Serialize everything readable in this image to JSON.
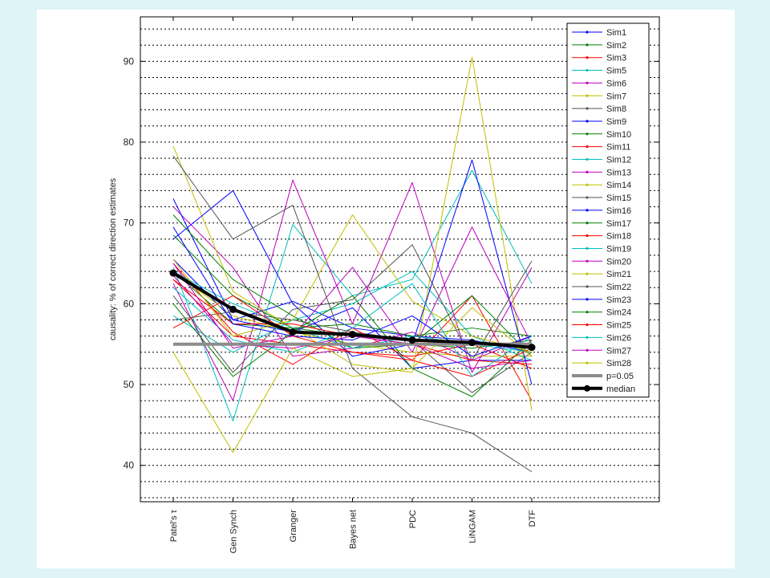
{
  "chart_data": {
    "type": "line",
    "ylabel": "causality:  % of correct direction estimates",
    "categories": [
      "Patel's τ",
      "Gen Synch",
      "Granger",
      "Bayes net",
      "PDC",
      "LiNGAM",
      "DTF"
    ],
    "ylim": [
      35.5,
      95.5
    ],
    "yticks": [
      40,
      50,
      60,
      70,
      80,
      90
    ],
    "grid": "horizontal dotted",
    "legend_position": "top-right",
    "series": [
      {
        "name": "Sim1",
        "color": "#0000ff",
        "values": [
          65.5,
          58.0,
          60.3,
          57.0,
          56.0,
          55.5,
          54.0
        ]
      },
      {
        "name": "Sim2",
        "color": "#008000",
        "values": [
          64.0,
          57.5,
          57.0,
          56.0,
          55.0,
          54.5,
          55.5
        ]
      },
      {
        "name": "Sim3",
        "color": "#ff0000",
        "values": [
          63.0,
          56.0,
          55.0,
          54.0,
          53.5,
          55.0,
          52.0
        ]
      },
      {
        "name": "Sim5",
        "color": "#00bfbf",
        "values": [
          64.5,
          45.5,
          69.8,
          61.0,
          63.0,
          76.5,
          62.5
        ]
      },
      {
        "name": "Sim6",
        "color": "#bf00bf",
        "values": [
          72.0,
          64.5,
          53.5,
          54.5,
          56.5,
          53.0,
          56.0
        ]
      },
      {
        "name": "Sim7",
        "color": "#bfbf00",
        "values": [
          64.0,
          58.5,
          56.5,
          55.0,
          54.0,
          53.5,
          53.5
        ]
      },
      {
        "name": "Sim8",
        "color": "#555555",
        "values": [
          58.0,
          59.0,
          58.0,
          56.5,
          55.5,
          49.0,
          54.0
        ]
      },
      {
        "name": "Sim9",
        "color": "#0000ff",
        "values": [
          73.0,
          58.0,
          56.5,
          59.5,
          52.0,
          53.0,
          53.0
        ]
      },
      {
        "name": "Sim10",
        "color": "#008000",
        "values": [
          68.5,
          61.0,
          57.0,
          57.5,
          56.0,
          57.0,
          56.0
        ]
      },
      {
        "name": "Sim11",
        "color": "#ff0000",
        "values": [
          65.0,
          56.5,
          52.5,
          57.0,
          53.0,
          61.0,
          48.0
        ]
      },
      {
        "name": "Sim12",
        "color": "#00bfbf",
        "values": [
          58.5,
          54.0,
          58.0,
          60.0,
          64.0,
          56.0,
          53.0
        ]
      },
      {
        "name": "Sim13",
        "color": "#bf00bf",
        "values": [
          62.5,
          48.0,
          75.3,
          57.5,
          75.0,
          51.5,
          64.5
        ]
      },
      {
        "name": "Sim14",
        "color": "#bfbf00",
        "values": [
          79.5,
          61.5,
          57.0,
          52.5,
          51.5,
          90.5,
          46.8
        ]
      },
      {
        "name": "Sim15",
        "color": "#555555",
        "values": [
          61.0,
          51.5,
          59.3,
          60.5,
          67.3,
          53.0,
          65.3
        ]
      },
      {
        "name": "Sim16",
        "color": "#0000ff",
        "values": [
          68.0,
          74.0,
          60.0,
          53.5,
          55.0,
          77.8,
          50.0
        ]
      },
      {
        "name": "Sim17",
        "color": "#008000",
        "values": [
          71.0,
          63.0,
          58.5,
          54.5,
          55.0,
          61.0,
          53.5
        ]
      },
      {
        "name": "Sim18",
        "color": "#ff0000",
        "values": [
          63.0,
          57.5,
          57.5,
          56.0,
          55.0,
          53.0,
          52.5
        ]
      },
      {
        "name": "Sim19",
        "color": "#00bfbf",
        "values": [
          64.0,
          60.0,
          57.0,
          54.5,
          56.0,
          55.0,
          54.0
        ]
      },
      {
        "name": "Sim20",
        "color": "#bf00bf",
        "values": [
          65.0,
          54.5,
          56.0,
          64.5,
          54.0,
          69.5,
          55.0
        ]
      },
      {
        "name": "Sim21",
        "color": "#bfbf00",
        "values": [
          65.5,
          56.0,
          58.0,
          71.0,
          60.3,
          56.0,
          54.0
        ]
      },
      {
        "name": "Sim22",
        "color": "#555555",
        "values": [
          78.3,
          68.0,
          72.2,
          52.0,
          46.0,
          44.0,
          39.2
        ]
      },
      {
        "name": "Sim23",
        "color": "#0000ff",
        "values": [
          69.5,
          57.5,
          56.0,
          55.5,
          58.5,
          53.5,
          56.0
        ]
      },
      {
        "name": "Sim24",
        "color": "#008000",
        "values": [
          60.0,
          51.0,
          56.5,
          61.0,
          52.0,
          48.5,
          55.5
        ]
      },
      {
        "name": "Sim25",
        "color": "#ff0000",
        "values": [
          57.0,
          61.0,
          56.0,
          54.0,
          53.0,
          51.0,
          54.5
        ]
      },
      {
        "name": "Sim26",
        "color": "#00bfbf",
        "values": [
          62.0,
          55.5,
          54.0,
          57.0,
          62.5,
          51.0,
          56.0
        ]
      },
      {
        "name": "Sim27",
        "color": "#bf00bf",
        "values": [
          63.5,
          55.0,
          54.5,
          56.0,
          55.0,
          52.0,
          53.0
        ]
      },
      {
        "name": "Sim28",
        "color": "#bfbf00",
        "values": [
          54.0,
          41.6,
          54.5,
          51.0,
          52.0,
          59.5,
          53.5
        ]
      },
      {
        "name": "p=0.05",
        "color": "#8c8c8c",
        "width": 4,
        "values": [
          55.0,
          55.0,
          55.0,
          55.0,
          55.0,
          55.0,
          55.0
        ]
      },
      {
        "name": "median",
        "color": "#000000",
        "width": 4,
        "markers": true,
        "values": [
          63.8,
          59.3,
          56.5,
          56.2,
          55.5,
          55.2,
          54.6
        ]
      }
    ]
  }
}
